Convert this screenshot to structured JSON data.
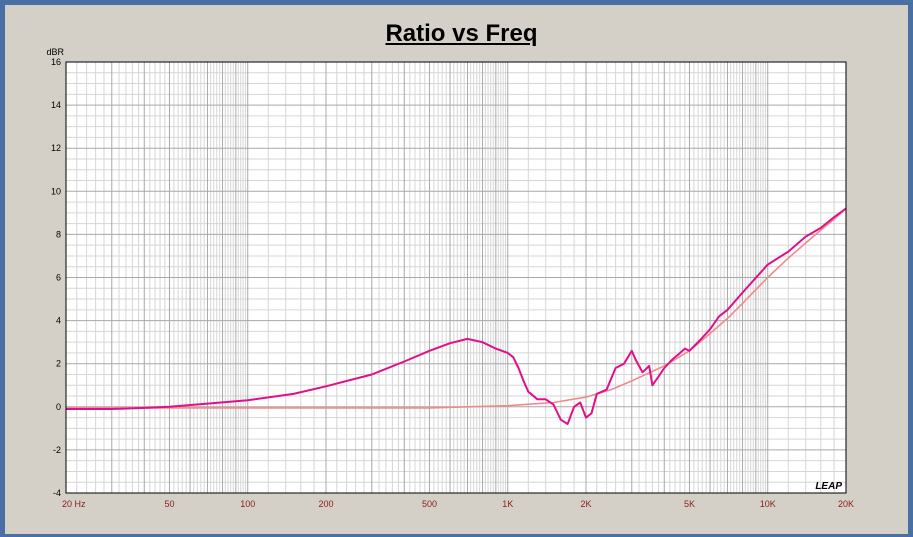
{
  "chart_data": {
    "type": "line",
    "title": "Ratio vs Freq",
    "ylabel": "dBR",
    "xscale": "log",
    "xlim": [
      20,
      20000
    ],
    "ylim": [
      -4,
      16
    ],
    "y_ticks": [
      16,
      14,
      12,
      10,
      8,
      6,
      4,
      2,
      0,
      -2,
      -4
    ],
    "x_tick_values": [
      20,
      50,
      100,
      200,
      500,
      1000,
      2000,
      5000,
      10000,
      20000
    ],
    "x_tick_labels": [
      "20  Hz",
      "50",
      "100",
      "200",
      "500",
      "1K",
      "2K",
      "5K",
      "10K",
      "20K"
    ],
    "grid": true,
    "logo": "LEAP",
    "colors": {
      "measured": "#e0108a",
      "fit": "#f08a8a",
      "background": "#d4d0c8",
      "plot_bg": "#ffffff",
      "frame": "#4a6fa5"
    },
    "series": [
      {
        "color": "#e0108a",
        "points": [
          [
            20,
            -0.1
          ],
          [
            30,
            -0.1
          ],
          [
            40,
            -0.05
          ],
          [
            50,
            0.0
          ],
          [
            70,
            0.15
          ],
          [
            100,
            0.3
          ],
          [
            150,
            0.6
          ],
          [
            200,
            0.95
          ],
          [
            300,
            1.5
          ],
          [
            400,
            2.1
          ],
          [
            500,
            2.6
          ],
          [
            600,
            2.95
          ],
          [
            700,
            3.15
          ],
          [
            800,
            3.0
          ],
          [
            900,
            2.7
          ],
          [
            1000,
            2.5
          ],
          [
            1050,
            2.3
          ],
          [
            1100,
            1.8
          ],
          [
            1150,
            1.2
          ],
          [
            1200,
            0.7
          ],
          [
            1300,
            0.35
          ],
          [
            1400,
            0.35
          ],
          [
            1500,
            0.1
          ],
          [
            1600,
            -0.6
          ],
          [
            1700,
            -0.8
          ],
          [
            1800,
            0.0
          ],
          [
            1900,
            0.2
          ],
          [
            2000,
            -0.5
          ],
          [
            2100,
            -0.3
          ],
          [
            2200,
            0.6
          ],
          [
            2400,
            0.8
          ],
          [
            2600,
            1.8
          ],
          [
            2800,
            2.0
          ],
          [
            3000,
            2.6
          ],
          [
            3100,
            2.2
          ],
          [
            3300,
            1.6
          ],
          [
            3500,
            1.9
          ],
          [
            3600,
            1.0
          ],
          [
            3800,
            1.4
          ],
          [
            4000,
            1.8
          ],
          [
            4300,
            2.2
          ],
          [
            4500,
            2.4
          ],
          [
            4800,
            2.7
          ],
          [
            5000,
            2.6
          ],
          [
            5500,
            3.1
          ],
          [
            6000,
            3.6
          ],
          [
            6500,
            4.2
          ],
          [
            7000,
            4.5
          ],
          [
            8000,
            5.3
          ],
          [
            10000,
            6.6
          ],
          [
            12000,
            7.2
          ],
          [
            14000,
            7.9
          ],
          [
            16000,
            8.3
          ],
          [
            18000,
            8.8
          ],
          [
            20000,
            9.2
          ]
        ]
      },
      {
        "color": "#f08a8a",
        "points": [
          [
            20,
            -0.05
          ],
          [
            50,
            -0.05
          ],
          [
            100,
            -0.05
          ],
          [
            200,
            -0.05
          ],
          [
            500,
            -0.05
          ],
          [
            1000,
            0.05
          ],
          [
            1500,
            0.2
          ],
          [
            2000,
            0.45
          ],
          [
            2500,
            0.8
          ],
          [
            3000,
            1.2
          ],
          [
            4000,
            1.9
          ],
          [
            5000,
            2.6
          ],
          [
            6000,
            3.4
          ],
          [
            7000,
            4.1
          ],
          [
            8000,
            4.8
          ],
          [
            10000,
            6.0
          ],
          [
            12000,
            6.9
          ],
          [
            14000,
            7.6
          ],
          [
            16000,
            8.2
          ],
          [
            18000,
            8.7
          ],
          [
            20000,
            9.2
          ]
        ]
      }
    ]
  }
}
